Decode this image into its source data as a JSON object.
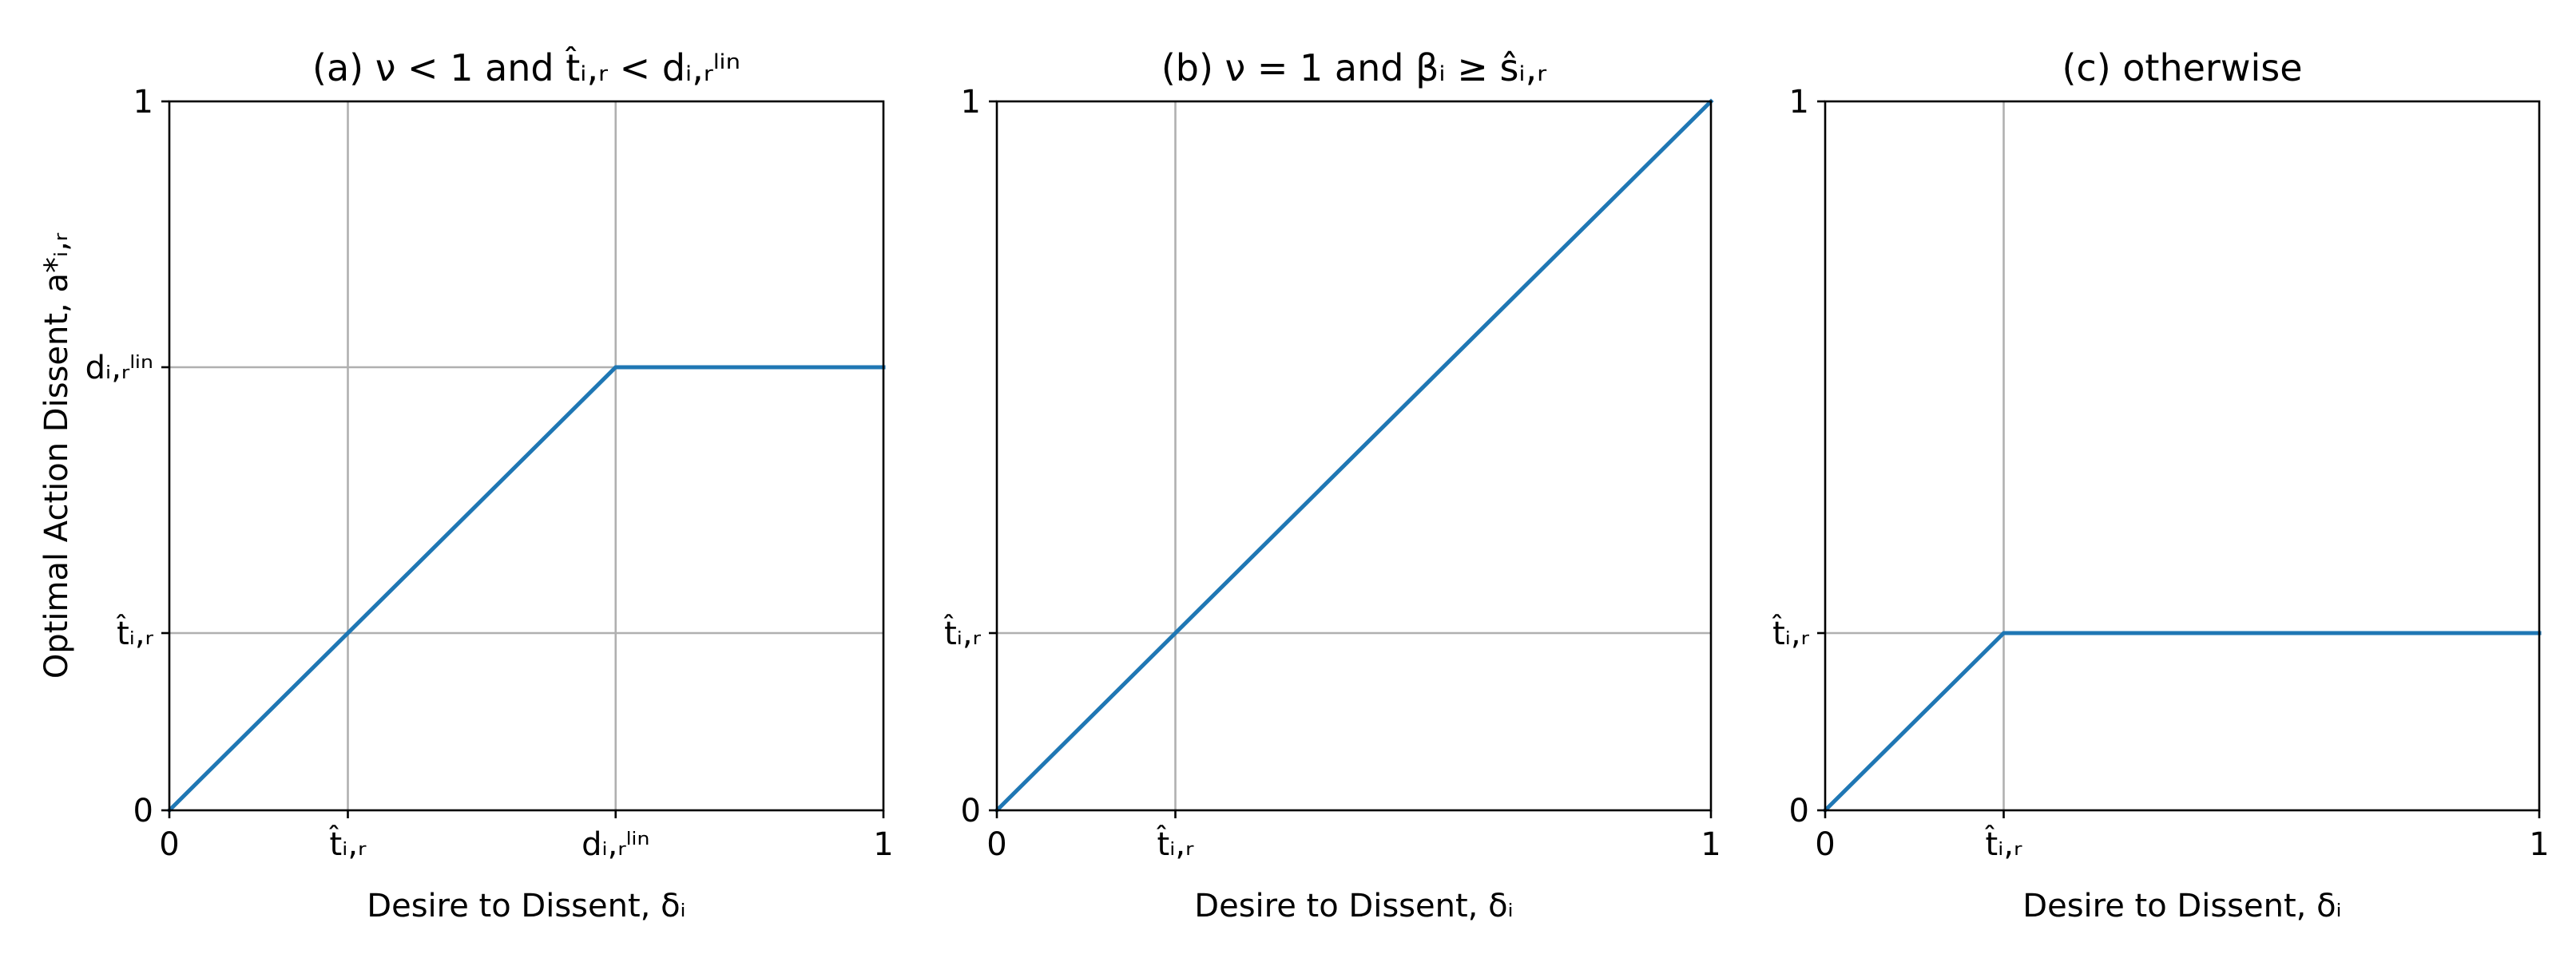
{
  "chart_data": [
    {
      "type": "line",
      "title": "(a) ν < 1 and t̂ᵢ,ᵣ < dᵢ,ᵣˡⁱⁿ",
      "xlabel": "Desire to Dissent, δᵢ",
      "ylabel": "Optimal Action Dissent, a*ᵢ,ᵣ",
      "xlim": [
        0,
        1
      ],
      "ylim": [
        0,
        1
      ],
      "grid": true,
      "x_ticks": [
        {
          "value": 0,
          "label": "0"
        },
        {
          "value": 0.25,
          "label": "t̂ᵢ,ᵣ"
        },
        {
          "value": 0.625,
          "label": "dᵢ,ᵣˡⁱⁿ"
        },
        {
          "value": 1,
          "label": "1"
        }
      ],
      "y_ticks": [
        {
          "value": 0,
          "label": "0"
        },
        {
          "value": 0.25,
          "label": "t̂ᵢ,ᵣ"
        },
        {
          "value": 0.625,
          "label": "dᵢ,ᵣˡⁱⁿ"
        },
        {
          "value": 1,
          "label": "1"
        }
      ],
      "series": [
        {
          "x": [
            0,
            0.625,
            1
          ],
          "y": [
            0,
            0.625,
            0.625
          ]
        }
      ]
    },
    {
      "type": "line",
      "title": "(b) ν = 1 and βᵢ ≥ ŝᵢ,ᵣ",
      "xlabel": "Desire to Dissent, δᵢ",
      "ylabel": "",
      "xlim": [
        0,
        1
      ],
      "ylim": [
        0,
        1
      ],
      "grid": true,
      "x_ticks": [
        {
          "value": 0,
          "label": "0"
        },
        {
          "value": 0.25,
          "label": "t̂ᵢ,ᵣ"
        },
        {
          "value": 1,
          "label": "1"
        }
      ],
      "y_ticks": [
        {
          "value": 0,
          "label": "0"
        },
        {
          "value": 0.25,
          "label": "t̂ᵢ,ᵣ"
        },
        {
          "value": 1,
          "label": "1"
        }
      ],
      "series": [
        {
          "x": [
            0,
            1
          ],
          "y": [
            0,
            1
          ]
        }
      ]
    },
    {
      "type": "line",
      "title": "(c) otherwise",
      "xlabel": "Desire to Dissent, δᵢ",
      "ylabel": "",
      "xlim": [
        0,
        1
      ],
      "ylim": [
        0,
        1
      ],
      "grid": true,
      "x_ticks": [
        {
          "value": 0,
          "label": "0"
        },
        {
          "value": 0.25,
          "label": "t̂ᵢ,ᵣ"
        },
        {
          "value": 1,
          "label": "1"
        }
      ],
      "y_ticks": [
        {
          "value": 0,
          "label": "0"
        },
        {
          "value": 0.25,
          "label": "t̂ᵢ,ᵣ"
        },
        {
          "value": 1,
          "label": "1"
        }
      ],
      "series": [
        {
          "x": [
            0,
            0.25,
            1
          ],
          "y": [
            0,
            0.25,
            0.25
          ]
        }
      ]
    }
  ],
  "colors": {
    "series": "#1f77b4",
    "grid": "#b0b0b0",
    "axes": "#000000"
  }
}
